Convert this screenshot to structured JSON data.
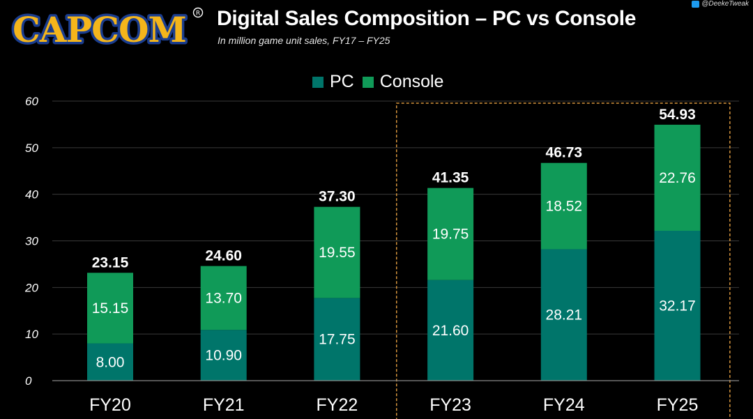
{
  "header": {
    "logo_text": "CAPCOM",
    "title": "Digital Sales Composition – PC vs Console",
    "subtitle": "In million game unit sales, FY17 – FY25",
    "credit": "@DeekeTweak"
  },
  "colors": {
    "pc": "#00756a",
    "console": "#109a58",
    "background": "#000000",
    "logo_fill": "#f4b51b",
    "logo_outline": "#1a3d8f",
    "highlight_box": "#d9973e",
    "grid": "#3a3a3a"
  },
  "chart_data": {
    "type": "bar",
    "stacked": true,
    "categories": [
      "FY20",
      "FY21",
      "FY22",
      "FY23",
      "FY24",
      "FY25"
    ],
    "series": [
      {
        "name": "PC",
        "values": [
          8.0,
          10.9,
          17.75,
          21.6,
          28.21,
          32.17
        ]
      },
      {
        "name": "Console",
        "values": [
          15.15,
          13.7,
          19.55,
          19.75,
          18.52,
          22.76
        ]
      }
    ],
    "totals": [
      23.15,
      24.6,
      37.3,
      41.35,
      46.73,
      54.93
    ],
    "segment_labels": {
      "PC": [
        "8.00",
        "10.90",
        "17.75",
        "21.60",
        "28.21",
        "32.17"
      ],
      "Console": [
        "15.15",
        "13.70",
        "19.55",
        "19.75",
        "18.52",
        "22.76"
      ]
    },
    "total_labels": [
      "23.15",
      "24.60",
      "37.30",
      "41.35",
      "46.73",
      "54.93"
    ],
    "ylim": [
      0,
      60
    ],
    "yticks": [
      "0",
      "10",
      "20",
      "30",
      "40",
      "50",
      "60"
    ],
    "ytick_values": [
      0,
      10,
      20,
      30,
      40,
      50,
      60
    ],
    "grid": true,
    "legend_position": "top-center",
    "highlighted_categories": [
      "FY23",
      "FY24",
      "FY25"
    ]
  }
}
